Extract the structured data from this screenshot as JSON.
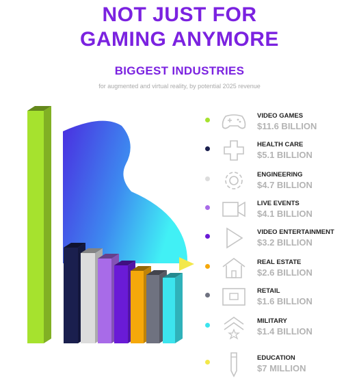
{
  "header": {
    "title_line1": "NOT JUST FOR",
    "title_line2": "GAMING ANYMORE",
    "subtitle": "BIGGEST INDUSTRIES",
    "caption": "for augmented and virtual reality, by potential 2025 revenue"
  },
  "chart_data": {
    "type": "bar",
    "title": "BIGGEST INDUSTRIES",
    "subtitle": "for augmented and virtual reality, by potential 2025 revenue",
    "unit": "billion USD",
    "categories": [
      "VIDEO GAMES",
      "HEALTH CARE",
      "ENGINEERING",
      "LIVE EVENTS",
      "VIDEO ENTERTAINMENT",
      "REAL ESTATE",
      "RETAIL",
      "MILITARY",
      "EDUCATION"
    ],
    "values": [
      11.6,
      5.1,
      4.7,
      4.1,
      3.2,
      2.6,
      1.6,
      1.4,
      0.007
    ],
    "value_labels": [
      "$11.6 BILLION",
      "$5.1 BILLION",
      "$4.7 BILLION",
      "$4.1 BILLION",
      "$3.2 BILLION",
      "$2.6 BILLION",
      "$1.6 BILLION",
      "$1.4 BILLION",
      "$7 MILLION"
    ],
    "colors": [
      "#a6e22e",
      "#1a1f4e",
      "#dcdcdc",
      "#a86be8",
      "#6a1bd6",
      "#f5a80b",
      "#6f7280",
      "#3ce4ee",
      "#f3e84a"
    ],
    "icons": [
      "gamepad-icon",
      "medical-cross-icon",
      "gear-icon",
      "video-camera-icon",
      "play-icon",
      "house-icon",
      "storefront-icon",
      "chevron-star-icon",
      "pencil-icon"
    ],
    "legend": "right",
    "grid": false
  }
}
